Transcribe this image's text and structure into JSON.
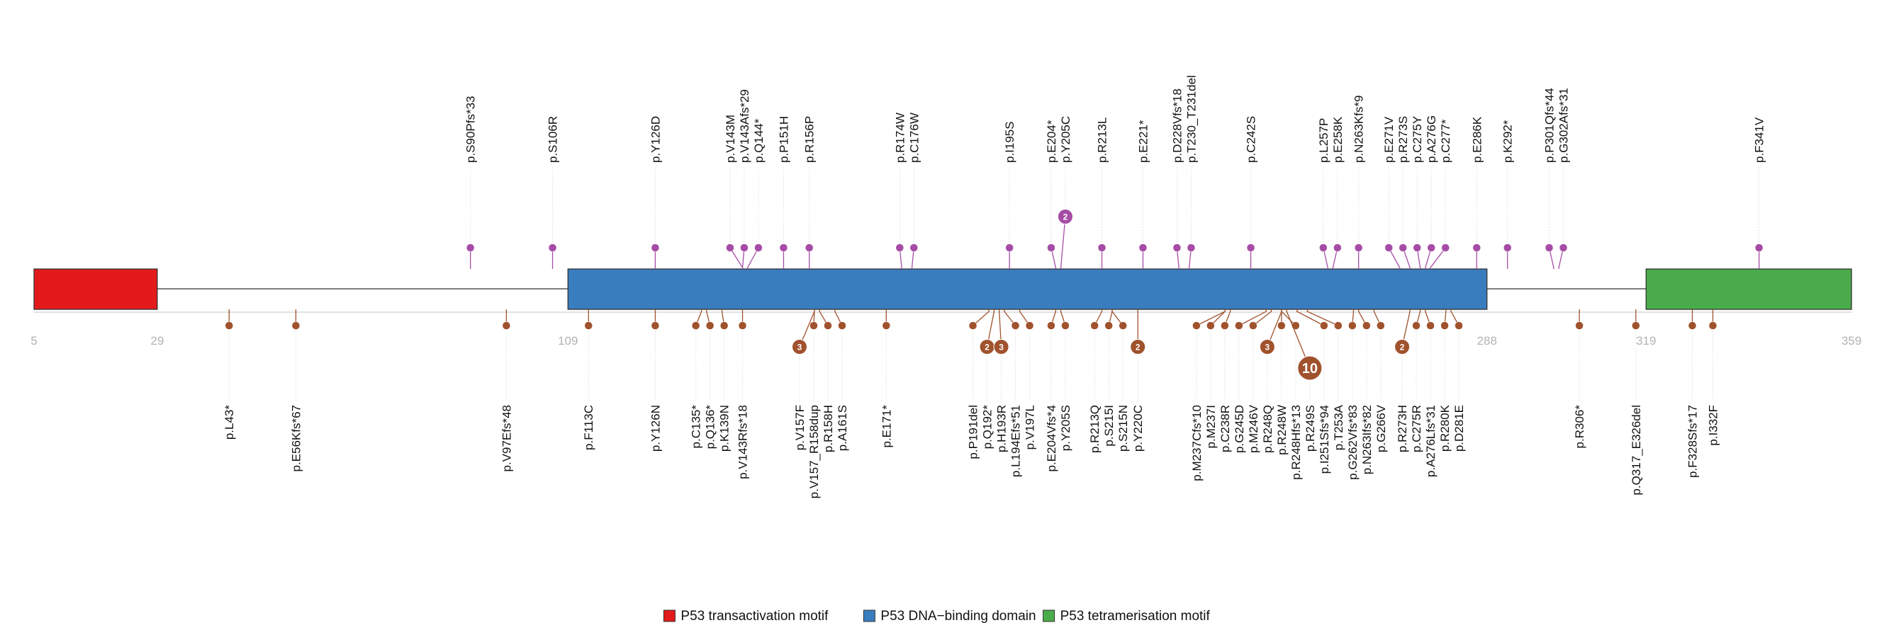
{
  "chart_data": {
    "type": "lollipop",
    "protein_length": 359,
    "x_ticks": [
      5,
      29,
      109,
      288,
      319,
      359
    ],
    "domains": [
      {
        "name": "P53 transactivation motif",
        "start": 5,
        "end": 29,
        "color": "#e31a1c"
      },
      {
        "name": "P53 DNA−binding domain",
        "start": 109,
        "end": 288,
        "color": "#3a7dbf"
      },
      {
        "name": "P53 tetramerisation motif",
        "start": 319,
        "end": 359,
        "color": "#4aab4a"
      }
    ],
    "series": [
      {
        "group": "top",
        "color": "#a64ca6",
        "mutations": [
          {
            "label": "p.S90Pfs*33",
            "pos": 90,
            "count": 1
          },
          {
            "label": "p.S106R",
            "pos": 106,
            "count": 1
          },
          {
            "label": "p.Y126D",
            "pos": 126,
            "count": 1
          },
          {
            "label": "p.V143M",
            "pos": 143,
            "count": 1
          },
          {
            "label": "p.V143Afs*29",
            "pos": 143,
            "count": 1
          },
          {
            "label": "p.Q144*",
            "pos": 144,
            "count": 1
          },
          {
            "label": "p.P151H",
            "pos": 151,
            "count": 1
          },
          {
            "label": "p.R156P",
            "pos": 156,
            "count": 1
          },
          {
            "label": "p.R174W",
            "pos": 174,
            "count": 1
          },
          {
            "label": "p.C176W",
            "pos": 176,
            "count": 1
          },
          {
            "label": "p.I195S",
            "pos": 195,
            "count": 1
          },
          {
            "label": "p.E204*",
            "pos": 204,
            "count": 1
          },
          {
            "label": "p.Y205C",
            "pos": 205,
            "count": 2
          },
          {
            "label": "p.R213L",
            "pos": 213,
            "count": 1
          },
          {
            "label": "p.E221*",
            "pos": 221,
            "count": 1
          },
          {
            "label": "p.D228Vfs*18",
            "pos": 228,
            "count": 1
          },
          {
            "label": "p.T230_T231del",
            "pos": 230,
            "count": 1
          },
          {
            "label": "p.C242S",
            "pos": 242,
            "count": 1
          },
          {
            "label": "p.L257P",
            "pos": 257,
            "count": 1
          },
          {
            "label": "p.E258K",
            "pos": 258,
            "count": 1
          },
          {
            "label": "p.N263Kfs*9",
            "pos": 263,
            "count": 1
          },
          {
            "label": "p.E271V",
            "pos": 271,
            "count": 1
          },
          {
            "label": "p.R273S",
            "pos": 273,
            "count": 1
          },
          {
            "label": "p.C275Y",
            "pos": 275,
            "count": 1
          },
          {
            "label": "p.A276G",
            "pos": 276,
            "count": 1
          },
          {
            "label": "p.C277*",
            "pos": 277,
            "count": 1
          },
          {
            "label": "p.E286K",
            "pos": 286,
            "count": 1
          },
          {
            "label": "p.K292*",
            "pos": 292,
            "count": 1
          },
          {
            "label": "p.P301Qfs*44",
            "pos": 301,
            "count": 1
          },
          {
            "label": "p.G302Afs*31",
            "pos": 302,
            "count": 1
          },
          {
            "label": "p.F341V",
            "pos": 341,
            "count": 1
          }
        ]
      },
      {
        "group": "bottom",
        "color": "#a0522d",
        "mutations": [
          {
            "label": "p.L43*",
            "pos": 43,
            "count": 1
          },
          {
            "label": "p.E56Kfs*67",
            "pos": 56,
            "count": 1
          },
          {
            "label": "p.V97Efs*48",
            "pos": 97,
            "count": 1
          },
          {
            "label": "p.F113C",
            "pos": 113,
            "count": 1
          },
          {
            "label": "p.Y126N",
            "pos": 126,
            "count": 1
          },
          {
            "label": "p.C135*",
            "pos": 135,
            "count": 1
          },
          {
            "label": "p.Q136*",
            "pos": 136,
            "count": 1
          },
          {
            "label": "p.K139N",
            "pos": 139,
            "count": 1
          },
          {
            "label": "p.V143Rfs*18",
            "pos": 143,
            "count": 1
          },
          {
            "label": "p.V157F",
            "pos": 157,
            "count": 3
          },
          {
            "label": "p.V157_R158dup",
            "pos": 157,
            "count": 1
          },
          {
            "label": "p.R158H",
            "pos": 158,
            "count": 1
          },
          {
            "label": "p.A161S",
            "pos": 161,
            "count": 1
          },
          {
            "label": "p.E171*",
            "pos": 171,
            "count": 1
          },
          {
            "label": "p.P191del",
            "pos": 191,
            "count": 1
          },
          {
            "label": "p.Q192*",
            "pos": 192,
            "count": 2
          },
          {
            "label": "p.H193R",
            "pos": 193,
            "count": 3
          },
          {
            "label": "p.L194Efs*51",
            "pos": 194,
            "count": 1
          },
          {
            "label": "p.V197L",
            "pos": 197,
            "count": 1
          },
          {
            "label": "p.E204Vfs*4",
            "pos": 204,
            "count": 1
          },
          {
            "label": "p.Y205S",
            "pos": 205,
            "count": 1
          },
          {
            "label": "p.R213Q",
            "pos": 213,
            "count": 1
          },
          {
            "label": "p.S215I",
            "pos": 215,
            "count": 1
          },
          {
            "label": "p.S215N",
            "pos": 215,
            "count": 1
          },
          {
            "label": "p.Y220C",
            "pos": 220,
            "count": 2
          },
          {
            "label": "p.M237Cfs*10",
            "pos": 237,
            "count": 1
          },
          {
            "label": "p.M237I",
            "pos": 237,
            "count": 1
          },
          {
            "label": "p.C238R",
            "pos": 238,
            "count": 1
          },
          {
            "label": "p.G245D",
            "pos": 245,
            "count": 1
          },
          {
            "label": "p.M246V",
            "pos": 246,
            "count": 1
          },
          {
            "label": "p.R248Q",
            "pos": 248,
            "count": 3
          },
          {
            "label": "p.R248W",
            "pos": 248,
            "count": 1
          },
          {
            "label": "p.R248Hfs*13",
            "pos": 248,
            "count": 1
          },
          {
            "label": "p.R249S",
            "pos": 249,
            "count": 10
          },
          {
            "label": "p.I251Sfs*94",
            "pos": 251,
            "count": 1
          },
          {
            "label": "p.T253A",
            "pos": 253,
            "count": 1
          },
          {
            "label": "p.G262Vfs*83",
            "pos": 262,
            "count": 1
          },
          {
            "label": "p.N263Ifs*82",
            "pos": 263,
            "count": 1
          },
          {
            "label": "p.G266V",
            "pos": 266,
            "count": 1
          },
          {
            "label": "p.R273H",
            "pos": 273,
            "count": 2
          },
          {
            "label": "p.C275R",
            "pos": 275,
            "count": 1
          },
          {
            "label": "p.A276Lfs*31",
            "pos": 276,
            "count": 1
          },
          {
            "label": "p.R280K",
            "pos": 280,
            "count": 1
          },
          {
            "label": "p.D281E",
            "pos": 281,
            "count": 1
          },
          {
            "label": "p.R306*",
            "pos": 306,
            "count": 1
          },
          {
            "label": "p.Q317_E326del",
            "pos": 317,
            "count": 1
          },
          {
            "label": "p.F328Sfs*17",
            "pos": 328,
            "count": 1
          },
          {
            "label": "p.I332F",
            "pos": 332,
            "count": 1
          }
        ]
      }
    ],
    "legend": {
      "placement": "bottom-center"
    }
  }
}
